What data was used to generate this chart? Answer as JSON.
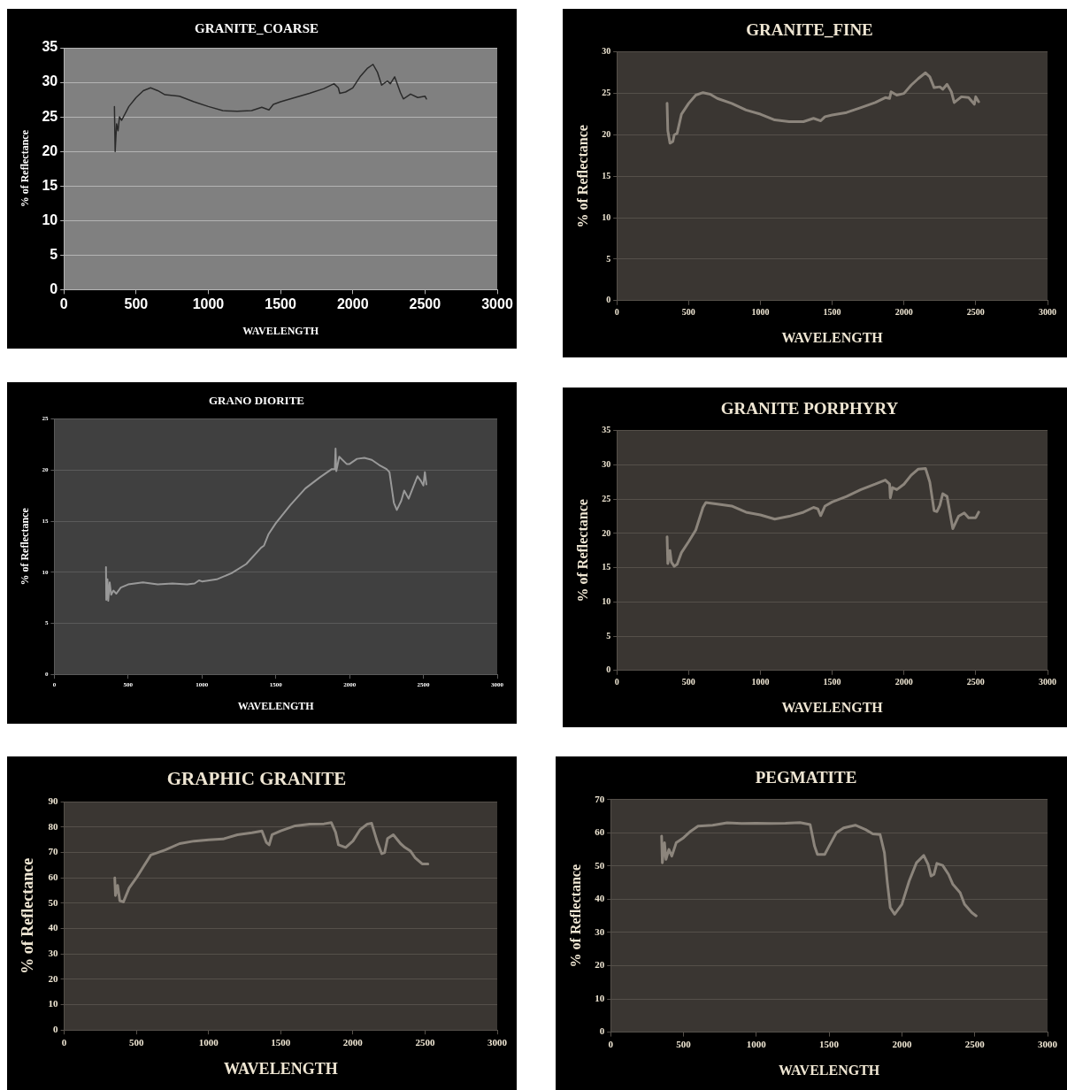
{
  "chart_data": [
    {
      "type": "line",
      "title": "GRANITE_COARSE",
      "xlabel": "WAVELENGTH",
      "ylabel": "% of Reflectance",
      "xlim": [
        0,
        3000
      ],
      "xticks": [
        0,
        500,
        1000,
        1500,
        2000,
        2500,
        3000
      ],
      "ylim": [
        0,
        35
      ],
      "yticks": [
        0,
        5,
        10,
        15,
        20,
        25,
        30,
        35
      ],
      "grid": "y",
      "x": [
        350,
        355,
        365,
        375,
        385,
        400,
        450,
        500,
        550,
        600,
        650,
        700,
        800,
        900,
        1000,
        1100,
        1200,
        1300,
        1370,
        1420,
        1450,
        1500,
        1600,
        1700,
        1800,
        1870,
        1900,
        1910,
        1950,
        2000,
        2050,
        2100,
        2140,
        2170,
        2200,
        2240,
        2260,
        2290,
        2330,
        2350,
        2400,
        2450,
        2500,
        2510
      ],
      "series": [
        {
          "color": "#2a2a2a",
          "values": [
            26.5,
            20,
            24,
            23,
            25,
            24.5,
            26.5,
            27.8,
            28.8,
            29.2,
            28.8,
            28.2,
            28,
            27.2,
            26.5,
            25.9,
            25.8,
            25.9,
            26.4,
            26,
            26.8,
            27.2,
            27.8,
            28.4,
            29.1,
            29.8,
            29.2,
            28.4,
            28.6,
            29.2,
            30.8,
            32,
            32.6,
            31.5,
            29.6,
            30.2,
            29.8,
            30.8,
            28.5,
            27.6,
            28.3,
            27.8,
            28,
            27.6
          ]
        }
      ]
    },
    {
      "type": "line",
      "title": "GRANITE_FINE",
      "xlabel": "WAVELENGTH",
      "ylabel": "% of Reflectance",
      "xlim": [
        0,
        3000
      ],
      "xticks": [
        0,
        500,
        1000,
        1500,
        2000,
        2500,
        3000
      ],
      "ylim": [
        0,
        30
      ],
      "yticks": [
        0,
        5,
        10,
        15,
        20,
        25,
        30
      ],
      "grid": "y",
      "x": [
        350,
        355,
        370,
        390,
        400,
        420,
        450,
        500,
        550,
        600,
        650,
        700,
        800,
        900,
        1000,
        1100,
        1200,
        1300,
        1370,
        1420,
        1450,
        1500,
        1600,
        1700,
        1800,
        1870,
        1900,
        1910,
        1950,
        2000,
        2050,
        2100,
        2150,
        2180,
        2210,
        2250,
        2270,
        2300,
        2330,
        2350,
        2400,
        2450,
        2490,
        2500,
        2520
      ],
      "series": [
        {
          "color": "#8c857c",
          "values": [
            23.8,
            20.5,
            19,
            19.2,
            20,
            20.2,
            22.5,
            23.8,
            24.8,
            25.1,
            24.9,
            24.4,
            23.8,
            23,
            22.5,
            21.8,
            21.6,
            21.6,
            22,
            21.7,
            22.2,
            22.4,
            22.7,
            23.3,
            23.9,
            24.5,
            24.4,
            25.2,
            24.8,
            25,
            26,
            26.8,
            27.5,
            27,
            25.7,
            25.8,
            25.5,
            26.1,
            25.2,
            23.9,
            24.6,
            24.5,
            23.7,
            24.6,
            24
          ]
        }
      ]
    },
    {
      "type": "line",
      "title": "GRANO DIORITE",
      "xlabel": "WAVELENGTH",
      "ylabel": "% of Reflectance",
      "xlim": [
        0,
        3000
      ],
      "xticks": [
        0,
        500,
        1000,
        1500,
        2000,
        2500,
        3000
      ],
      "ylim": [
        0,
        25
      ],
      "yticks": [
        0,
        5,
        10,
        15,
        20,
        25
      ],
      "grid": "y",
      "x": [
        350,
        352,
        360,
        365,
        375,
        385,
        400,
        420,
        450,
        500,
        600,
        700,
        800,
        900,
        950,
        980,
        1000,
        1100,
        1200,
        1300,
        1400,
        1420,
        1450,
        1500,
        1600,
        1700,
        1800,
        1880,
        1900,
        1905,
        1910,
        1930,
        1980,
        2000,
        2050,
        2100,
        2150,
        2200,
        2250,
        2270,
        2300,
        2320,
        2350,
        2370,
        2400,
        2430,
        2460,
        2480,
        2500,
        2510,
        2520
      ],
      "series": [
        {
          "color": "#999999",
          "values": [
            10.5,
            7.3,
            9.3,
            7.2,
            9,
            7.8,
            8.2,
            7.9,
            8.5,
            8.8,
            9,
            8.8,
            8.9,
            8.8,
            8.9,
            9.2,
            9.1,
            9.3,
            9.9,
            10.8,
            12.4,
            12.6,
            13.7,
            14.8,
            16.6,
            18.2,
            19.3,
            20.1,
            20.1,
            22.1,
            19.9,
            21.3,
            20.6,
            20.6,
            21.1,
            21.2,
            21,
            20.5,
            20.1,
            19.8,
            16.8,
            16.1,
            17,
            18,
            17.2,
            18.3,
            19.4,
            19,
            18.5,
            19.8,
            18.6
          ]
        }
      ]
    },
    {
      "type": "line",
      "title": "GRANITE PORPHYRY",
      "xlabel": "WAVELENGTH",
      "ylabel": "% of Reflectance",
      "xlim": [
        0,
        3000
      ],
      "xticks": [
        0,
        500,
        1000,
        1500,
        2000,
        2500,
        3000
      ],
      "ylim": [
        0,
        35
      ],
      "yticks": [
        0,
        5,
        10,
        15,
        20,
        25,
        30,
        35
      ],
      "grid": "y",
      "x": [
        350,
        355,
        370,
        380,
        400,
        420,
        450,
        500,
        550,
        600,
        620,
        700,
        800,
        900,
        1000,
        1100,
        1200,
        1300,
        1370,
        1400,
        1420,
        1450,
        1500,
        1600,
        1700,
        1800,
        1870,
        1900,
        1905,
        1920,
        1950,
        2000,
        2050,
        2100,
        2150,
        2180,
        2210,
        2230,
        2250,
        2270,
        2300,
        2340,
        2380,
        2420,
        2450,
        2500,
        2520
      ],
      "series": [
        {
          "color": "#8c857c",
          "values": [
            19.5,
            15.6,
            17.5,
            15.8,
            15.2,
            15.5,
            17.2,
            18.8,
            20.5,
            23.8,
            24.5,
            24.3,
            24,
            23.1,
            22.7,
            22.1,
            22.5,
            23.1,
            23.8,
            23.6,
            22.6,
            24,
            24.6,
            25.4,
            26.4,
            27.2,
            27.8,
            27.2,
            25.2,
            26.7,
            26.4,
            27.2,
            28.5,
            29.4,
            29.5,
            27.5,
            23.3,
            23.2,
            24.1,
            25.8,
            25.4,
            20.7,
            22.5,
            23,
            22.3,
            22.3,
            23.1
          ]
        }
      ]
    },
    {
      "type": "line",
      "title": "GRAPHIC GRANITE",
      "xlabel": "WAVELENGTH",
      "ylabel": "% of Reflectance",
      "xlim": [
        0,
        3000
      ],
      "xticks": [
        0,
        500,
        1000,
        1500,
        2000,
        2500,
        3000
      ],
      "ylim": [
        0,
        90
      ],
      "yticks": [
        0,
        10,
        20,
        30,
        40,
        50,
        60,
        70,
        80,
        90
      ],
      "grid": "y",
      "x": [
        350,
        355,
        370,
        385,
        410,
        450,
        500,
        550,
        600,
        700,
        800,
        900,
        1000,
        1100,
        1200,
        1300,
        1370,
        1400,
        1420,
        1440,
        1500,
        1600,
        1700,
        1800,
        1850,
        1880,
        1900,
        1950,
        2000,
        2050,
        2100,
        2130,
        2170,
        2200,
        2220,
        2240,
        2280,
        2330,
        2360,
        2400,
        2430,
        2480,
        2520
      ],
      "series": [
        {
          "color": "#8c857c",
          "values": [
            60,
            53,
            57,
            51,
            50.5,
            56,
            60,
            64.5,
            69,
            71,
            73.5,
            74.5,
            75,
            75.3,
            77,
            77.8,
            78.5,
            74,
            73,
            77,
            78.5,
            80.5,
            81.2,
            81.3,
            81.8,
            78,
            73,
            72,
            74.5,
            79,
            81.2,
            81.5,
            74,
            69.5,
            70,
            75.5,
            77,
            73.5,
            72,
            70.5,
            68,
            65.5,
            65.5
          ]
        }
      ]
    },
    {
      "type": "line",
      "title": "PEGMATITE",
      "xlabel": "WAVELENGTH",
      "ylabel": "% of Reflectance",
      "xlim": [
        0,
        3000
      ],
      "xticks": [
        0,
        500,
        1000,
        1500,
        2000,
        2500,
        3000
      ],
      "ylim": [
        0,
        70
      ],
      "yticks": [
        0,
        10,
        20,
        30,
        40,
        50,
        60,
        70
      ],
      "grid": "y",
      "x": [
        350,
        355,
        370,
        380,
        400,
        420,
        450,
        500,
        550,
        600,
        700,
        800,
        900,
        1000,
        1100,
        1200,
        1300,
        1370,
        1400,
        1420,
        1470,
        1500,
        1550,
        1600,
        1680,
        1750,
        1800,
        1850,
        1880,
        1900,
        1920,
        1950,
        2000,
        2050,
        2100,
        2150,
        2180,
        2200,
        2220,
        2240,
        2280,
        2320,
        2350,
        2400,
        2430,
        2480,
        2510
      ],
      "series": [
        {
          "color": "#8c857c",
          "values": [
            59,
            51,
            57,
            52,
            55,
            53,
            57,
            58.5,
            60.5,
            62,
            62.3,
            63,
            62.8,
            62.9,
            62.8,
            62.9,
            63.1,
            62.5,
            56,
            53.5,
            53.5,
            56,
            60,
            61.5,
            62.3,
            61,
            59.7,
            59.5,
            54,
            45,
            37.5,
            35.5,
            38.5,
            45.5,
            51,
            53.2,
            50.5,
            47,
            47.5,
            50.8,
            50.2,
            47.5,
            44.5,
            42,
            38.5,
            36,
            35
          ]
        }
      ]
    }
  ]
}
